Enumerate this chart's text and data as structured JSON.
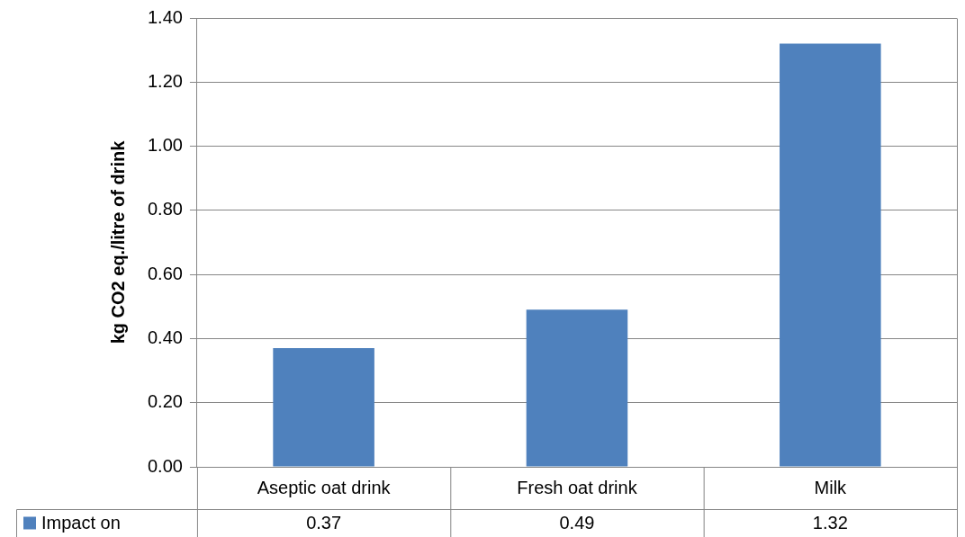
{
  "chart_data": {
    "type": "bar",
    "ylabel": "kg CO2 eq./litre of drink",
    "categories": [
      "Aseptic oat drink",
      "Fresh oat drink",
      "Milk"
    ],
    "series": [
      {
        "name": "Impact on",
        "color": "#4f81bd",
        "values": [
          0.37,
          0.49,
          1.32
        ]
      }
    ],
    "ylim": [
      0,
      1.4
    ],
    "yticks": [
      {
        "value": 0,
        "label": "0.00"
      },
      {
        "value": 0.2,
        "label": "0.20"
      },
      {
        "value": 0.4,
        "label": "0.40"
      },
      {
        "value": 0.6,
        "label": "0.60"
      },
      {
        "value": 0.8,
        "label": "0.80"
      },
      {
        "value": 1,
        "label": "1.00"
      },
      {
        "value": 1.2,
        "label": "1.20"
      },
      {
        "value": 1.4,
        "label": "1.40"
      }
    ],
    "grid": "y",
    "data_labels": true
  }
}
